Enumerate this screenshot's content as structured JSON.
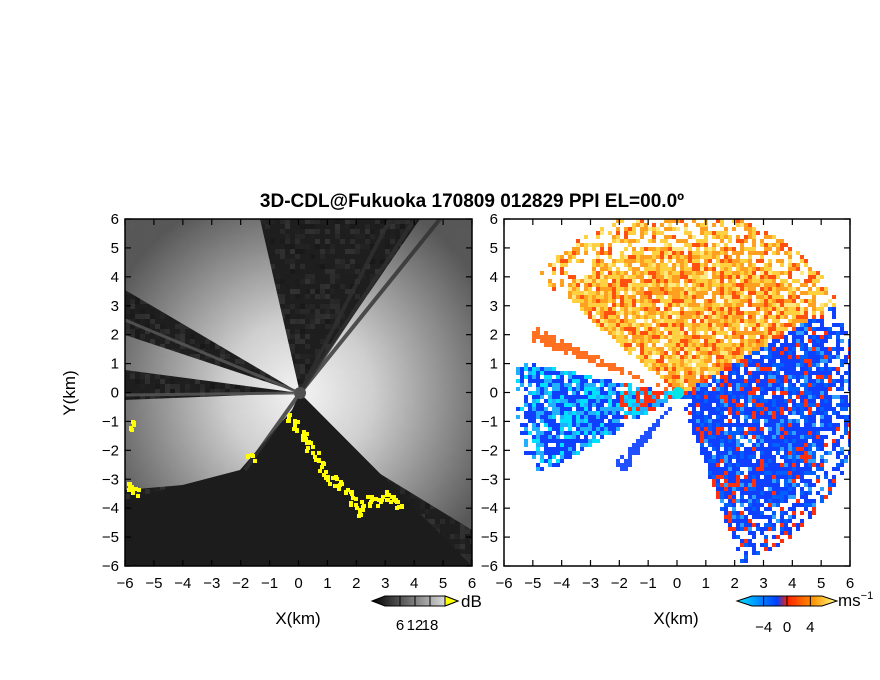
{
  "chart_data": [
    {
      "type": "heatmap",
      "panel": "reflectivity",
      "title": "3D-CDL@Fukuoka 170809 012829 PPI EL=00.0º",
      "xlabel": "X(km)",
      "ylabel": "Y(km)",
      "xlim": [
        -6,
        6
      ],
      "ylim": [
        -6,
        6
      ],
      "xticks": [
        "−6",
        "−5",
        "−4",
        "−3",
        "−2",
        "−1",
        "0",
        "1",
        "2",
        "3",
        "4",
        "5",
        "6"
      ],
      "yticks": [
        "6",
        "5",
        "4",
        "3",
        "2",
        "1",
        "0",
        "−1",
        "−2",
        "−3",
        "−4",
        "−5",
        "−6"
      ],
      "colorbar": {
        "unit": "dB",
        "ticks": [
          "6",
          "12",
          "18"
        ],
        "range": [
          0,
          24
        ],
        "colors": [
          "#000000",
          "#ffffff"
        ],
        "extend_high_color": "#ffff00"
      },
      "radar_center": [
        0,
        0
      ],
      "center_marker_color": "#505050"
    },
    {
      "type": "heatmap",
      "panel": "doppler_velocity",
      "xlabel": "X(km)",
      "xlim": [
        -6,
        6
      ],
      "ylim": [
        -6,
        6
      ],
      "xticks": [
        "−6",
        "−5",
        "−4",
        "−3",
        "−2",
        "−1",
        "0",
        "1",
        "2",
        "3",
        "4",
        "5",
        "6"
      ],
      "yticks": [
        "6",
        "5",
        "4",
        "3",
        "2",
        "1",
        "0",
        "−1",
        "−2",
        "−3",
        "−4",
        "−5",
        "−6"
      ],
      "colorbar": {
        "unit": "ms",
        "unit_exponent": "−1",
        "ticks": [
          "−4",
          "0",
          "4"
        ],
        "range": [
          -6,
          6
        ],
        "colors": [
          "#00e5ff",
          "#0040ff",
          "#ff3000",
          "#ffb000",
          "#ffff80"
        ]
      },
      "radar_center": [
        0,
        0
      ],
      "center_marker_color": "#00e5e5"
    }
  ]
}
